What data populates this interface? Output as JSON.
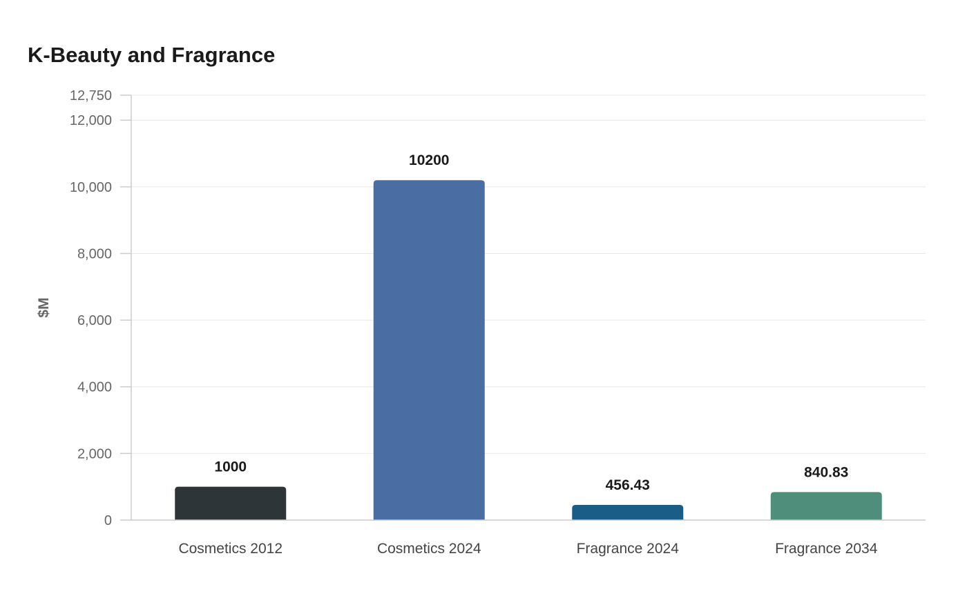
{
  "chart_data": {
    "type": "bar",
    "title": "K-Beauty and Fragrance",
    "xlabel": "",
    "ylabel": "$M",
    "categories": [
      "Cosmetics 2012",
      "Cosmetics 2024",
      "Fragrance 2024",
      "Fragrance 2034"
    ],
    "values": [
      1000,
      10200,
      456.43,
      840.83
    ],
    "data_labels": [
      "1000",
      "10200",
      "456.43",
      "840.83"
    ],
    "bar_colors": [
      "#2e3538",
      "#4a6ea3",
      "#1a5e87",
      "#4e8e7a"
    ],
    "ylim": [
      0,
      12750
    ],
    "y_ticks": [
      0,
      2000,
      4000,
      6000,
      8000,
      10000,
      12000,
      12750
    ],
    "y_tick_labels": [
      "0",
      "2,000",
      "4,000",
      "6,000",
      "8,000",
      "10,000",
      "12,000",
      "12,750"
    ],
    "grid": true,
    "legend": "none"
  }
}
